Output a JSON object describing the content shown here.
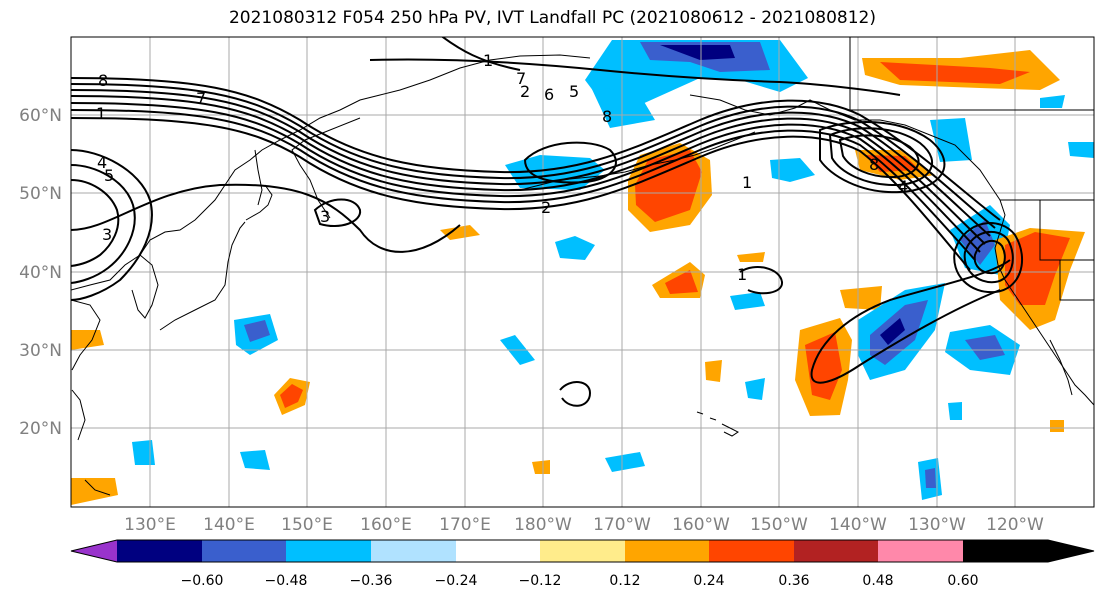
{
  "title": "2021080312 F054 250 hPa PV, IVT Landfall PC (2021080612 - 2021080812)",
  "latitude_labels": [
    "60°N",
    "50°N",
    "40°N",
    "30°N",
    "20°N"
  ],
  "longitude_labels": [
    "130°E",
    "140°E",
    "150°E",
    "160°E",
    "170°E",
    "180°W",
    "170°W",
    "160°W",
    "150°W",
    "140°W",
    "130°W",
    "120°W"
  ],
  "contour_labels": [
    "8",
    "7",
    "1",
    "4",
    "5",
    "3",
    "2",
    "1",
    "5",
    "6",
    "8",
    "7",
    "1",
    "2",
    "3",
    "4",
    "8",
    "1"
  ],
  "colorbar": {
    "ticks": [
      "−0.60",
      "−0.48",
      "−0.36",
      "−0.24",
      "−0.12",
      "0.12",
      "0.24",
      "0.36",
      "0.48",
      "0.60"
    ],
    "colors": [
      "#9933cc",
      "#000080",
      "#3a5fcd",
      "#00bfff",
      "#b0e2ff",
      "#ffffff",
      "#ffec8b",
      "#ffa500",
      "#ff4500",
      "#b22222",
      "#ff88aa"
    ]
  }
}
